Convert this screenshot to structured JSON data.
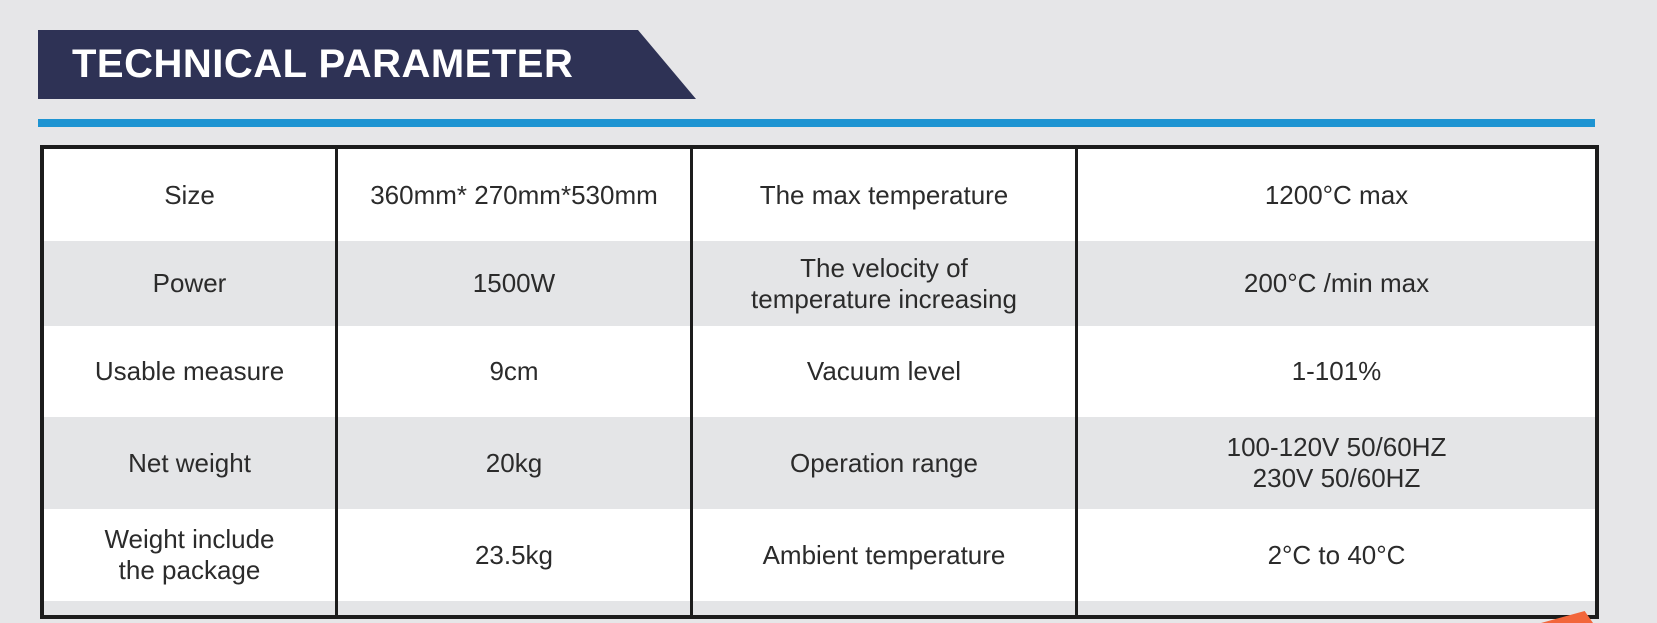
{
  "banner": {
    "title": "TECHNICAL PARAMETER"
  },
  "colors": {
    "page_background": "#e6e6e8",
    "banner_background": "#2e3255",
    "accent_blue": "#1e94d2",
    "accent_orange": "#f2663b",
    "row_alternate": "#e4e5e7",
    "table_border": "#1c1c1c",
    "text": "#2b2b2b"
  },
  "table": {
    "rows": [
      {
        "cells": [
          "Size",
          "360mm* 270mm*530mm",
          "The max temperature",
          "1200°C max"
        ]
      },
      {
        "cells": [
          "Power",
          "1500W",
          "The velocity of\ntemperature increasing",
          "200°C /min max"
        ]
      },
      {
        "cells": [
          "Usable measure",
          "9cm",
          "Vacuum level",
          "1-101%"
        ]
      },
      {
        "cells": [
          "Net weight",
          "20kg",
          "Operation range",
          "100-120V 50/60HZ\n230V 50/60HZ"
        ]
      },
      {
        "cells": [
          "Weight include\nthe package",
          "23.5kg",
          "Ambient temperature",
          "2°C to 40°C"
        ]
      }
    ]
  }
}
